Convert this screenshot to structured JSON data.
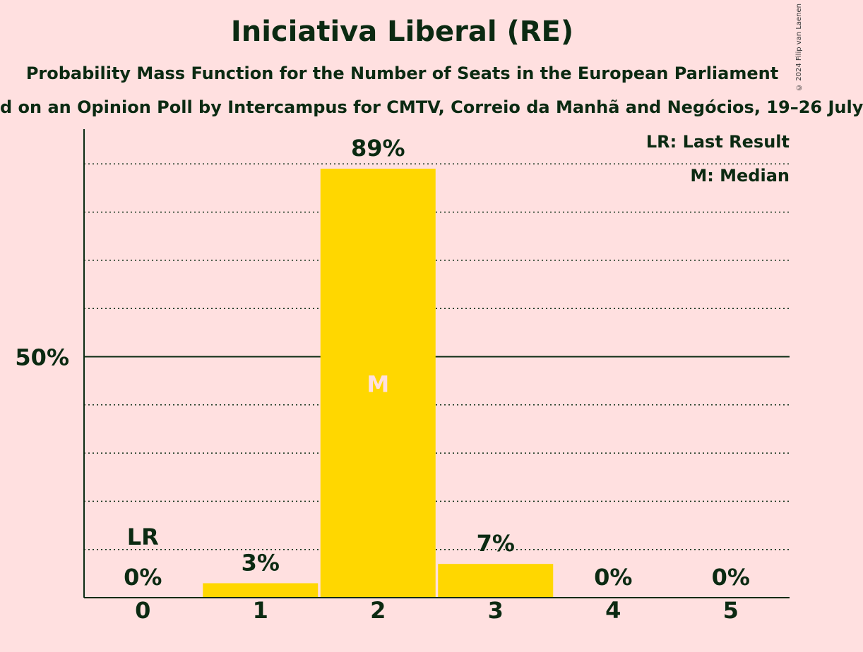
{
  "chart_data": {
    "type": "bar",
    "title": "Iniciativa Liberal (RE)",
    "subtitle": "Probability Mass Function for the Number of Seats in the European Parliament",
    "source": "d on an Opinion Poll by Intercampus for CMTV, Correio da Manhã and Negócios, 19–26 July",
    "copyright": "© 2024 Filip van Laenen",
    "categories": [
      "0",
      "1",
      "2",
      "3",
      "4",
      "5"
    ],
    "values": [
      0,
      3,
      89,
      7,
      0,
      0
    ],
    "value_labels": [
      "0%",
      "3%",
      "89%",
      "7%",
      "0%",
      "0%"
    ],
    "ylim": [
      0,
      97
    ],
    "y_tick_label": "50%",
    "y_tick_value": 50,
    "gridlines_dotted": [
      10,
      20,
      30,
      40,
      60,
      70,
      80,
      90
    ],
    "last_result_category": "0",
    "last_result_marker": "LR",
    "median_category": "2",
    "median_marker": "M",
    "legend": [
      "LR: Last Result",
      "M: Median"
    ],
    "legend_position": "top-right",
    "colors": {
      "bar": "#ffd700",
      "background": "#ffe0e0",
      "text": "#0b2a12",
      "median_text": "#ffe0e0"
    }
  }
}
